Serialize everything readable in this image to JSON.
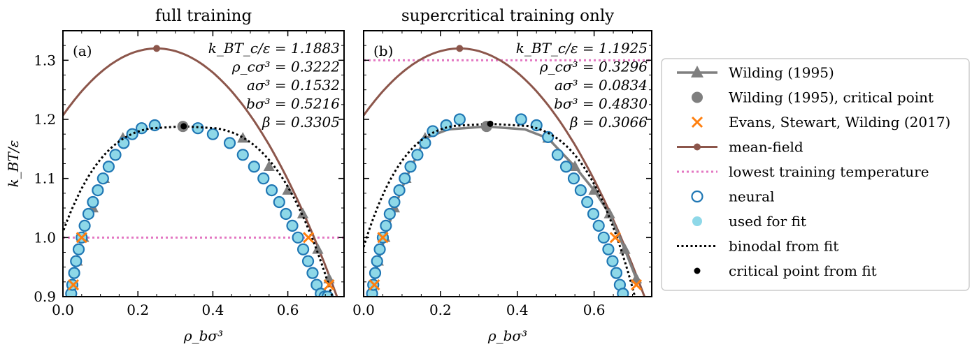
{
  "chart_data": [
    {
      "type": "scatter",
      "panel": "(a)",
      "title": "full training",
      "xlabel": "ρ_bσ³",
      "ylabel": "k_BT/ε",
      "xlim": [
        0.0,
        0.75
      ],
      "ylim": [
        0.9,
        1.35
      ],
      "xticks": [
        "0.0",
        "0.2",
        "0.4",
        "0.6"
      ],
      "yticks": [
        "0.9",
        "1.0",
        "1.1",
        "1.2",
        "1.3"
      ],
      "annotations": [
        "k_BT_c/ε = 1.1883",
        "ρ_cσ³ = 0.3222",
        "aσ³ = 0.1532",
        "bσ³ = 0.5216",
        "β = 0.3305"
      ],
      "lowest_training_temperature": 1.0,
      "fit": {
        "Tc": 1.1883,
        "rhoc": 0.3222,
        "a": 0.1532,
        "b": 0.5216,
        "beta": 0.3305
      },
      "mean_field_critical": [
        0.25,
        1.32
      ],
      "wilding_critical": [
        0.32,
        1.188
      ],
      "series": [
        {
          "name": "Wilding (1995)",
          "x": [
            0.026,
            0.038,
            0.055,
            0.08,
            0.11,
            0.16,
            0.48,
            0.55,
            0.6,
            0.64,
            0.68,
            0.71
          ],
          "y": [
            0.92,
            0.96,
            1.0,
            1.05,
            1.1,
            1.168,
            1.168,
            1.12,
            1.08,
            1.04,
            0.98,
            0.93
          ]
        },
        {
          "name": "Evans, Stewart, Wilding (2017)",
          "x": [
            0.028,
            0.05,
            0.655,
            0.71
          ],
          "y": [
            0.92,
            1.0,
            1.0,
            0.92
          ]
        },
        {
          "name": "neural",
          "x": [
            0.022,
            0.025,
            0.03,
            0.035,
            0.042,
            0.05,
            0.058,
            0.068,
            0.08,
            0.093,
            0.107,
            0.122,
            0.14,
            0.162,
            0.185,
            0.21,
            0.245,
            0.36,
            0.4,
            0.445,
            0.48,
            0.51,
            0.535,
            0.557,
            0.577,
            0.595,
            0.612,
            0.627,
            0.641,
            0.654,
            0.666,
            0.677,
            0.688,
            0.698,
            0.706
          ],
          "y": [
            0.905,
            0.92,
            0.94,
            0.96,
            0.98,
            1.0,
            1.02,
            1.04,
            1.06,
            1.08,
            1.1,
            1.12,
            1.14,
            1.16,
            1.175,
            1.185,
            1.19,
            1.185,
            1.175,
            1.16,
            1.14,
            1.12,
            1.1,
            1.08,
            1.06,
            1.04,
            1.02,
            1.0,
            0.98,
            0.96,
            0.94,
            0.92,
            0.905,
            0.9,
            0.9
          ]
        }
      ]
    },
    {
      "type": "scatter",
      "panel": "(b)",
      "title": "supercritical training only",
      "xlabel": "ρ_bσ³",
      "ylabel": "",
      "xlim": [
        0.0,
        0.75
      ],
      "ylim": [
        0.9,
        1.35
      ],
      "xticks": [
        "0.0",
        "0.2",
        "0.4",
        "0.6"
      ],
      "yticks": [],
      "annotations": [
        "k_BT_c/ε = 1.1925",
        "ρ_cσ³ = 0.3296",
        "aσ³ = 0.0834",
        "bσ³ = 0.4830",
        "β = 0.3066"
      ],
      "lowest_training_temperature": 1.3,
      "fit": {
        "Tc": 1.1925,
        "rhoc": 0.3296,
        "a": 0.0834,
        "b": 0.483,
        "beta": 0.3066
      },
      "mean_field_critical": [
        0.25,
        1.32
      ],
      "wilding_critical": [
        0.32,
        1.188
      ],
      "series": [
        {
          "name": "Wilding (1995)",
          "x": [
            0.026,
            0.038,
            0.055,
            0.08,
            0.11,
            0.16,
            0.48,
            0.55,
            0.6,
            0.64,
            0.68,
            0.71
          ],
          "y": [
            0.92,
            0.96,
            1.0,
            1.05,
            1.1,
            1.168,
            1.168,
            1.12,
            1.08,
            1.04,
            0.98,
            0.93
          ]
        },
        {
          "name": "Evans, Stewart, Wilding (2017)",
          "x": [
            0.028,
            0.05,
            0.655,
            0.71
          ],
          "y": [
            0.92,
            1.0,
            1.0,
            0.92
          ]
        },
        {
          "name": "neural",
          "x": [
            0.022,
            0.025,
            0.03,
            0.035,
            0.042,
            0.05,
            0.058,
            0.068,
            0.08,
            0.093,
            0.107,
            0.122,
            0.14,
            0.16,
            0.18,
            0.215,
            0.25,
            0.41,
            0.45,
            0.48,
            0.505,
            0.527,
            0.547,
            0.565,
            0.582,
            0.598,
            0.612,
            0.625,
            0.637,
            0.648,
            0.658,
            0.667,
            0.675
          ],
          "y": [
            0.905,
            0.92,
            0.94,
            0.96,
            0.98,
            1.0,
            1.02,
            1.04,
            1.06,
            1.08,
            1.1,
            1.12,
            1.14,
            1.16,
            1.18,
            1.19,
            1.2,
            1.2,
            1.19,
            1.17,
            1.14,
            1.12,
            1.1,
            1.08,
            1.06,
            1.04,
            1.02,
            1.0,
            0.98,
            0.96,
            0.94,
            0.92,
            0.905
          ]
        }
      ]
    }
  ],
  "legend": {
    "placement": "right",
    "entries": [
      {
        "label": "Wilding (1995)",
        "icon": "gray-line-triangle"
      },
      {
        "label": "Wilding (1995), critical point",
        "icon": "gray-circle"
      },
      {
        "label": "Evans, Stewart, Wilding (2017)",
        "icon": "orange-x"
      },
      {
        "label": "mean-field",
        "icon": "brown-line-dot"
      },
      {
        "label": "lowest training temperature",
        "icon": "pink-dotted-line"
      },
      {
        "label": "neural",
        "icon": "blue-open-circle"
      },
      {
        "label": "used for fit",
        "icon": "lightblue-filled-circle"
      },
      {
        "label": "binodal from fit",
        "icon": "black-dotted-line"
      },
      {
        "label": "critical point from fit",
        "icon": "black-dot"
      }
    ]
  },
  "colors": {
    "wilding": "#7f7f7f",
    "evans": "#ff7f0e",
    "mean_field": "#8c564b",
    "training": "#e377c2",
    "neural": "#1f77b4",
    "used_for_fit": "#8ed8e8",
    "fit": "#000000"
  }
}
